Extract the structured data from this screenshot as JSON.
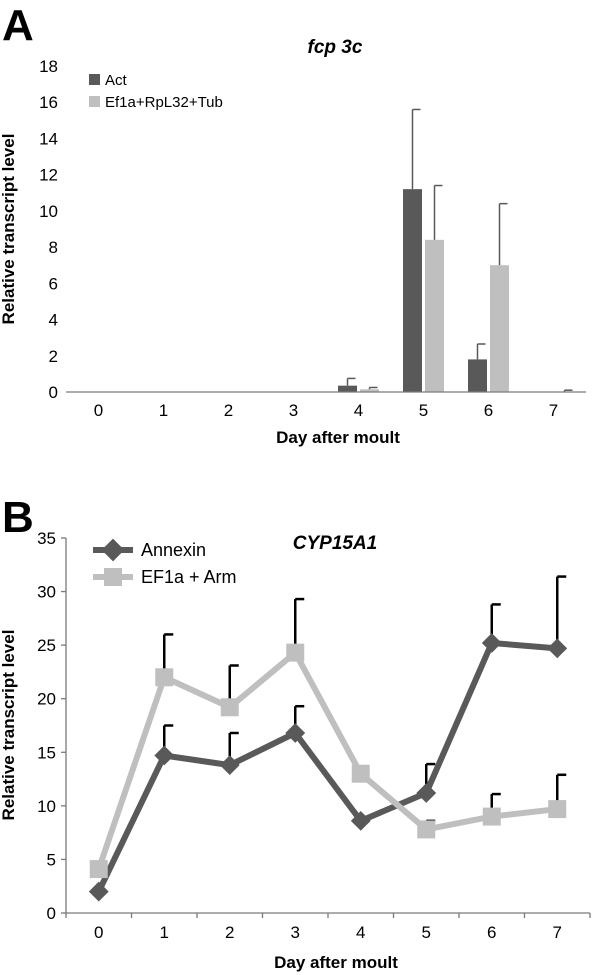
{
  "panels": {
    "a": {
      "letter": "A"
    },
    "b": {
      "letter": "B"
    }
  },
  "chart_data": [
    {
      "type": "bar",
      "title": "fcp 3c",
      "xlabel": "Day after moult",
      "ylabel": "Relative transcript level",
      "categories": [
        "0",
        "1",
        "2",
        "3",
        "4",
        "5",
        "6",
        "7"
      ],
      "ylim": [
        0,
        18
      ],
      "yticks": [
        0,
        2,
        4,
        6,
        8,
        10,
        12,
        14,
        16,
        18
      ],
      "legend_position": "top-left",
      "series": [
        {
          "name": "Act",
          "color": "#595959",
          "values": [
            0,
            0,
            0,
            0,
            0.35,
            11.2,
            1.8,
            0
          ],
          "errors": [
            0,
            0,
            0,
            0,
            0.4,
            4.4,
            0.85,
            0
          ]
        },
        {
          "name": "Ef1a+RpL32+Tub",
          "color": "#bfbfbf",
          "values": [
            0,
            0,
            0,
            0,
            0.15,
            8.4,
            7.0,
            0
          ],
          "errors": [
            0,
            0,
            0,
            0,
            0.1,
            3.0,
            3.4,
            0.1
          ]
        }
      ]
    },
    {
      "type": "line",
      "title": "CYP15A1",
      "xlabel": "Day after moult",
      "ylabel": "Relative transcript level",
      "categories": [
        "0",
        "1",
        "2",
        "3",
        "4",
        "5",
        "6",
        "7"
      ],
      "ylim": [
        0,
        35
      ],
      "yticks": [
        0,
        5,
        10,
        15,
        20,
        25,
        30,
        35
      ],
      "legend_position": "top-left",
      "series": [
        {
          "name": "Annexin",
          "color": "#595959",
          "marker": "diamond",
          "values": [
            2.0,
            14.7,
            13.8,
            16.8,
            8.6,
            11.2,
            25.2,
            24.7
          ],
          "errors": [
            0,
            2.8,
            3.0,
            2.5,
            0,
            2.7,
            3.6,
            6.7
          ]
        },
        {
          "name": "EF1a + Arm",
          "color": "#bfbfbf",
          "marker": "square",
          "values": [
            4.1,
            22.0,
            19.2,
            24.3,
            13.0,
            7.8,
            9.0,
            9.7
          ],
          "errors": [
            0,
            4.0,
            3.9,
            5.0,
            0,
            0.8,
            2.1,
            3.2
          ]
        }
      ]
    }
  ]
}
